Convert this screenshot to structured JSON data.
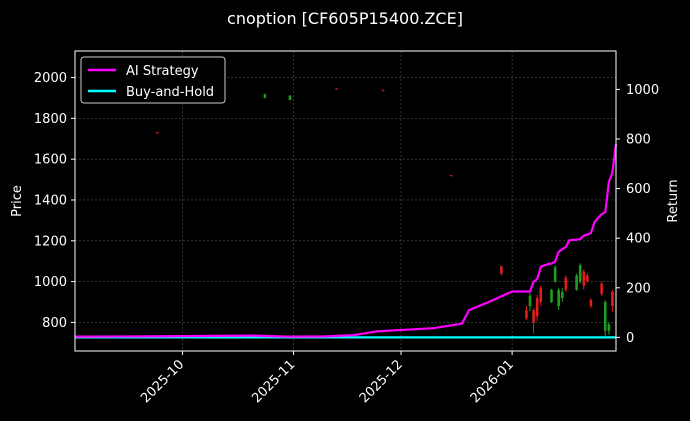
{
  "chart_data": {
    "type": "line",
    "title": "cnoption [CF605P15400.ZCE]",
    "ylabel": "Price",
    "y2label": "Return",
    "ylim": [
      660,
      2130
    ],
    "y2lim": [
      -55,
      1155
    ],
    "yticks": [
      800,
      1000,
      1200,
      1400,
      1600,
      1800,
      2000
    ],
    "y2ticks": [
      0,
      200,
      400,
      600,
      800,
      1000
    ],
    "x_ticks": [
      {
        "date": "2025-10-01",
        "label": "2025-10"
      },
      {
        "date": "2025-11-01",
        "label": "2025-11"
      },
      {
        "date": "2025-12-01",
        "label": "2025-12"
      },
      {
        "date": "2026-01-01",
        "label": "2026-01"
      }
    ],
    "x_range": [
      "2025-09-01",
      "2026-01-30"
    ],
    "grid": true,
    "legend_position": "top-left",
    "series": [
      {
        "name": "AI Strategy",
        "color": "#ff00ff",
        "axis": "right",
        "points": [
          [
            "2025-09-01",
            3
          ],
          [
            "2025-09-20",
            4
          ],
          [
            "2025-10-10",
            6
          ],
          [
            "2025-10-21",
            7
          ],
          [
            "2025-10-30",
            3
          ],
          [
            "2025-11-10",
            4
          ],
          [
            "2025-11-18",
            9
          ],
          [
            "2025-11-24",
            24
          ],
          [
            "2025-12-10",
            37
          ],
          [
            "2025-12-18",
            55
          ],
          [
            "2025-12-20",
            110
          ],
          [
            "2025-12-25",
            140
          ],
          [
            "2026-01-01",
            185
          ],
          [
            "2026-01-06",
            185
          ],
          [
            "2026-01-07",
            225
          ],
          [
            "2026-01-08",
            235
          ],
          [
            "2026-01-09",
            285
          ],
          [
            "2026-01-11",
            295
          ],
          [
            "2026-01-12",
            298
          ],
          [
            "2026-01-13",
            305
          ],
          [
            "2026-01-14",
            345
          ],
          [
            "2026-01-16",
            365
          ],
          [
            "2026-01-17",
            392
          ],
          [
            "2026-01-19",
            394
          ],
          [
            "2026-01-20",
            397
          ],
          [
            "2026-01-21",
            410
          ],
          [
            "2026-01-23",
            420
          ],
          [
            "2026-01-24",
            465
          ],
          [
            "2026-01-25",
            482
          ],
          [
            "2026-01-26",
            497
          ],
          [
            "2026-01-27",
            505
          ],
          [
            "2026-01-28",
            625
          ],
          [
            "2026-01-29",
            665
          ],
          [
            "2026-01-30",
            780
          ]
        ]
      },
      {
        "name": "Buy-and-Hold",
        "color": "#00ffff",
        "axis": "right",
        "points": [
          [
            "2025-09-01",
            0
          ],
          [
            "2026-01-30",
            0
          ]
        ]
      }
    ],
    "candles": [
      {
        "date": "2025-09-24",
        "open": 1732,
        "close": 1732,
        "high": 1733,
        "low": 1731,
        "dir": "down"
      },
      {
        "date": "2025-10-24",
        "open": 1900,
        "close": 1918,
        "high": 1921,
        "low": 1898,
        "dir": "up"
      },
      {
        "date": "2025-10-31",
        "open": 1890,
        "close": 1912,
        "high": 1913,
        "low": 1888,
        "dir": "up"
      },
      {
        "date": "2025-11-13",
        "open": 1946,
        "close": 1944,
        "high": 1947,
        "low": 1943,
        "dir": "down"
      },
      {
        "date": "2025-11-26",
        "open": 1939,
        "close": 1937,
        "high": 1940,
        "low": 1936,
        "dir": "down"
      },
      {
        "date": "2025-12-15",
        "open": 1522,
        "close": 1520,
        "high": 1523,
        "low": 1519,
        "dir": "down"
      },
      {
        "date": "2025-12-29",
        "open": 1075,
        "close": 1040,
        "high": 1078,
        "low": 1030,
        "dir": "down"
      },
      {
        "date": "2026-01-05",
        "open": 860,
        "close": 820,
        "high": 880,
        "low": 810,
        "dir": "down"
      },
      {
        "date": "2026-01-06",
        "open": 880,
        "close": 930,
        "high": 945,
        "low": 855,
        "dir": "up"
      },
      {
        "date": "2026-01-07",
        "open": 860,
        "close": 800,
        "high": 870,
        "low": 745,
        "dir": "down"
      },
      {
        "date": "2026-01-08",
        "open": 920,
        "close": 830,
        "high": 935,
        "low": 805,
        "dir": "down"
      },
      {
        "date": "2026-01-09",
        "open": 970,
        "close": 900,
        "high": 980,
        "low": 880,
        "dir": "down"
      },
      {
        "date": "2026-01-12",
        "open": 900,
        "close": 960,
        "high": 965,
        "low": 895,
        "dir": "up"
      },
      {
        "date": "2026-01-13",
        "open": 1000,
        "close": 1070,
        "high": 1080,
        "low": 995,
        "dir": "up"
      },
      {
        "date": "2026-01-14",
        "open": 880,
        "close": 960,
        "high": 970,
        "low": 860,
        "dir": "up"
      },
      {
        "date": "2026-01-15",
        "open": 920,
        "close": 950,
        "high": 970,
        "low": 900,
        "dir": "up"
      },
      {
        "date": "2026-01-16",
        "open": 1020,
        "close": 960,
        "high": 1030,
        "low": 950,
        "dir": "down"
      },
      {
        "date": "2026-01-19",
        "open": 960,
        "close": 1030,
        "high": 1040,
        "low": 955,
        "dir": "up"
      },
      {
        "date": "2026-01-20",
        "open": 1000,
        "close": 1080,
        "high": 1090,
        "low": 990,
        "dir": "up"
      },
      {
        "date": "2026-01-21",
        "open": 1050,
        "close": 980,
        "high": 1060,
        "low": 960,
        "dir": "down"
      },
      {
        "date": "2026-01-22",
        "open": 1030,
        "close": 1000,
        "high": 1040,
        "low": 995,
        "dir": "down"
      },
      {
        "date": "2026-01-23",
        "open": 910,
        "close": 880,
        "high": 920,
        "low": 870,
        "dir": "down"
      },
      {
        "date": "2026-01-26",
        "open": 990,
        "close": 940,
        "high": 1000,
        "low": 930,
        "dir": "down"
      },
      {
        "date": "2026-01-27",
        "open": 760,
        "close": 900,
        "high": 910,
        "low": 730,
        "dir": "up"
      },
      {
        "date": "2026-01-28",
        "open": 760,
        "close": 790,
        "high": 800,
        "low": 740,
        "dir": "up"
      },
      {
        "date": "2026-01-29",
        "open": 950,
        "close": 880,
        "high": 960,
        "low": 850,
        "dir": "down"
      }
    ]
  }
}
